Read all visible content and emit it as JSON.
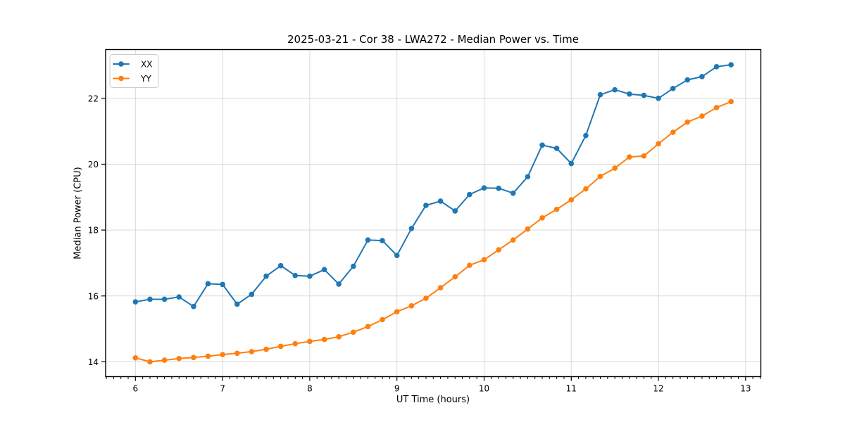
{
  "chart_data": {
    "type": "line",
    "title": "2025-03-21 - Cor 38 - LWA272 - Median Power vs. Time",
    "xlabel": "UT Time (hours)",
    "ylabel": "Median Power (CPU)",
    "xlim": [
      5.658,
      13.175
    ],
    "ylim": [
      13.55,
      23.48
    ],
    "x_ticks": [
      6,
      7,
      8,
      9,
      10,
      11,
      12,
      13
    ],
    "y_ticks": [
      14,
      16,
      18,
      20,
      22
    ],
    "x_minor_divisions": 12,
    "grid": true,
    "grid_color": "#d9d9d9",
    "legend_position": "upper left",
    "x": [
      6.0,
      6.167,
      6.333,
      6.5,
      6.667,
      6.833,
      7.0,
      7.167,
      7.333,
      7.5,
      7.667,
      7.833,
      8.0,
      8.167,
      8.333,
      8.5,
      8.667,
      8.833,
      9.0,
      9.167,
      9.333,
      9.5,
      9.667,
      9.833,
      10.0,
      10.167,
      10.333,
      10.5,
      10.667,
      10.833,
      11.0,
      11.167,
      11.333,
      11.5,
      11.667,
      11.833,
      12.0,
      12.167,
      12.333,
      12.5,
      12.667,
      12.833
    ],
    "series": [
      {
        "name": "XX",
        "color": "#1f77b4",
        "values": [
          15.82,
          15.9,
          15.9,
          15.97,
          15.68,
          16.37,
          16.35,
          15.75,
          16.05,
          16.6,
          16.92,
          16.62,
          16.6,
          16.8,
          16.36,
          16.9,
          17.7,
          17.68,
          17.23,
          18.05,
          18.75,
          18.88,
          18.58,
          19.08,
          19.28,
          19.27,
          19.12,
          19.62,
          20.58,
          20.48,
          20.02,
          20.87,
          22.11,
          22.26,
          22.13,
          22.09,
          22.0,
          22.3,
          22.56,
          22.66,
          22.96,
          23.02
        ]
      },
      {
        "name": "YY",
        "color": "#ff7f0e",
        "values": [
          14.12,
          14.0,
          14.05,
          14.1,
          14.13,
          14.17,
          14.22,
          14.26,
          14.31,
          14.38,
          14.47,
          14.55,
          14.62,
          14.68,
          14.76,
          14.9,
          15.07,
          15.28,
          15.52,
          15.7,
          15.93,
          16.25,
          16.58,
          16.93,
          17.1,
          17.4,
          17.7,
          18.03,
          18.37,
          18.63,
          18.92,
          19.25,
          19.63,
          19.88,
          20.22,
          20.25,
          20.62,
          20.97,
          21.28,
          21.46,
          21.72,
          21.9
        ]
      }
    ]
  }
}
